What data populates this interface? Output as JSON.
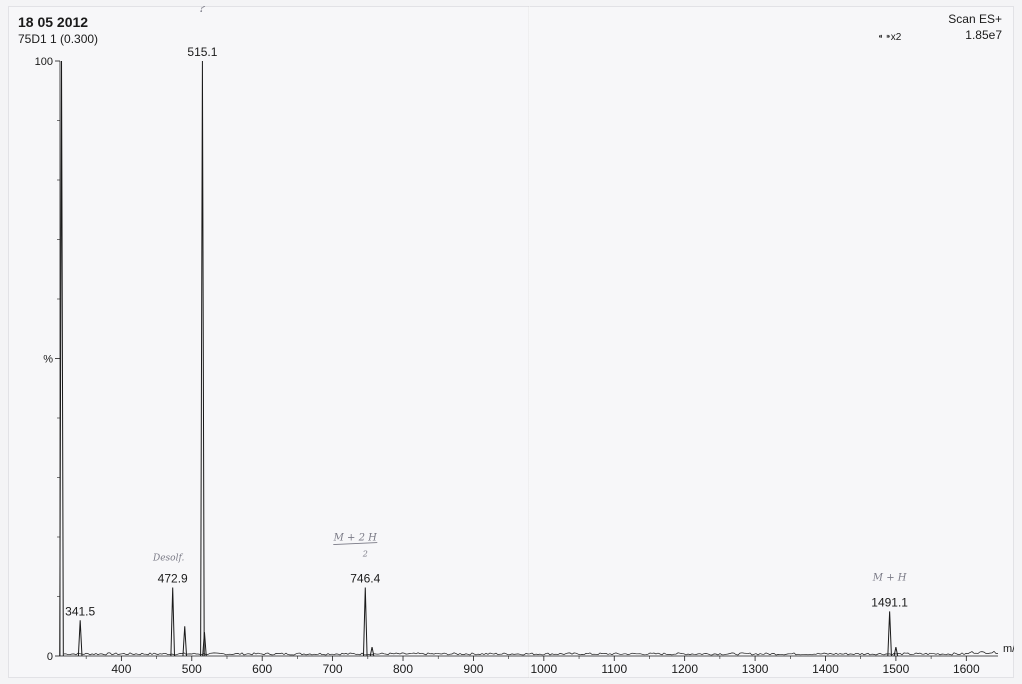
{
  "header": {
    "date": "18 05 2012",
    "sample": "75D1 1 (0.300)",
    "scan_mode": "Scan ES+",
    "intensity": "1.85e7",
    "zoom": "⁌ ⁍x2"
  },
  "colors": {
    "ink": "#1a1a1a",
    "handwriting": "#7a7a86",
    "paper": "#f7f7f9"
  },
  "chart_data": {
    "type": "line",
    "title": "",
    "xlabel": "m/z",
    "ylabel": "%",
    "xlim": [
      310,
      1645
    ],
    "ylim": [
      0,
      100
    ],
    "x_ticks": [
      400,
      500,
      600,
      700,
      800,
      900,
      1000,
      1100,
      1200,
      1300,
      1400,
      1500,
      1600
    ],
    "y_tick_labels": [
      {
        "value": 100,
        "label": "100"
      },
      {
        "value": 50,
        "label": "%"
      },
      {
        "value": 0,
        "label": "0"
      }
    ],
    "series": [
      {
        "peaks": [
          {
            "x": 315,
            "y": 100,
            "label": ""
          },
          {
            "x": 341.5,
            "y": 6,
            "label": "341.5"
          },
          {
            "x": 472.9,
            "y": 11.5,
            "label": "472.9"
          },
          {
            "x": 490,
            "y": 5,
            "label": ""
          },
          {
            "x": 515.1,
            "y": 100,
            "label": "515.1"
          },
          {
            "x": 518,
            "y": 4,
            "label": ""
          },
          {
            "x": 746.4,
            "y": 11.5,
            "label": "746.4"
          },
          {
            "x": 756,
            "y": 1.5,
            "label": ""
          },
          {
            "x": 1491.1,
            "y": 7.5,
            "label": "1491.1"
          },
          {
            "x": 1500,
            "y": 1.5,
            "label": ""
          }
        ]
      }
    ],
    "annotations": [
      {
        "text": "?",
        "near": "515.1",
        "handwritten": true
      },
      {
        "text": "Desolf.",
        "near": "472.9",
        "handwritten": true
      },
      {
        "text": "M + 2 H",
        "near": "746.4",
        "handwritten": true
      },
      {
        "text": "2",
        "near": "746.4",
        "handwritten": true
      },
      {
        "text": "M + H",
        "near": "1491.1",
        "handwritten": true
      }
    ],
    "grid": false
  }
}
